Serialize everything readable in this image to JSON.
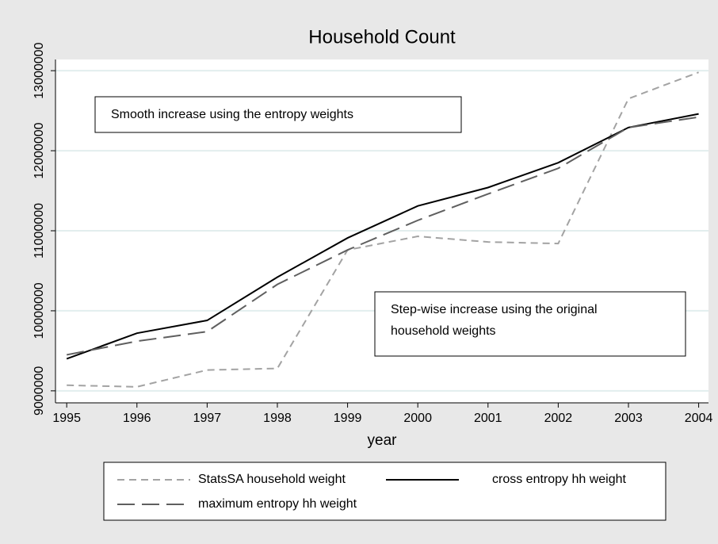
{
  "chart_data": {
    "type": "line",
    "title": "Household Count",
    "x_label": "year",
    "x": [
      1995,
      1996,
      1997,
      1998,
      1999,
      2000,
      2001,
      2002,
      2003,
      2004
    ],
    "xlim": [
      1994.84,
      2004.14
    ],
    "xticks": [
      1995,
      1996,
      1997,
      1998,
      1999,
      2000,
      2001,
      2002,
      2003,
      2004
    ],
    "ylim": [
      8850000,
      13140000
    ],
    "yticks": [
      9000000,
      10000000,
      11000000,
      12000000,
      13000000
    ],
    "grid": true,
    "series": [
      {
        "name": "StatsSA household weight",
        "color": "#a3a3a3",
        "dash": "short",
        "values": [
          9070000,
          9050000,
          9260000,
          9280000,
          10760000,
          10930000,
          10860000,
          10840000,
          12650000,
          12980000
        ]
      },
      {
        "name": "cross entropy hh weight",
        "color": "#000000",
        "dash": "solid",
        "values": [
          9400000,
          9720000,
          9880000,
          10420000,
          10910000,
          11310000,
          11540000,
          11850000,
          12290000,
          12460000
        ]
      },
      {
        "name": "maximum entropy hh weight",
        "color": "#5f5f5f",
        "dash": "long",
        "values": [
          9450000,
          9620000,
          9740000,
          10330000,
          10760000,
          11130000,
          11460000,
          11780000,
          12290000,
          12420000
        ]
      }
    ],
    "annotations": [
      {
        "lines": [
          "Smooth increase using the entropy weights"
        ]
      },
      {
        "lines": [
          "Step-wise increase using the original",
          "household weights"
        ]
      }
    ]
  }
}
